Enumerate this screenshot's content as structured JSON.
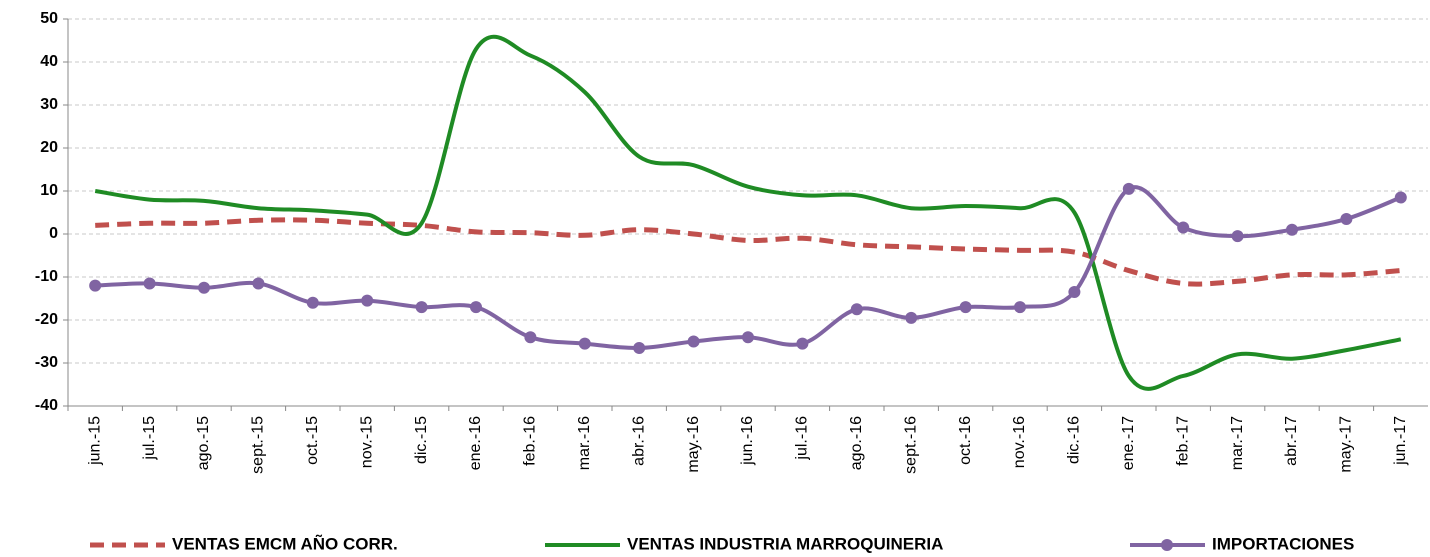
{
  "chart_data": {
    "type": "line",
    "categories": [
      "jun.-15",
      "jul.-15",
      "ago.-15",
      "sept.-15",
      "oct.-15",
      "nov.-15",
      "dic.-15",
      "ene.-16",
      "feb.-16",
      "mar.-16",
      "abr.-16",
      "may.-16",
      "jun.-16",
      "jul.-16",
      "ago.-16",
      "sept.-16",
      "oct.-16",
      "nov.-16",
      "dic.-16",
      "ene.-17",
      "feb.-17",
      "mar.-17",
      "abr.-17",
      "may.-17",
      "jun.-17"
    ],
    "series": [
      {
        "name": "VENTAS EMCM AÑO CORR.",
        "color": "#c0504d",
        "dashed": true,
        "markers": false,
        "values": [
          2,
          2.5,
          2.5,
          3.2,
          3.2,
          2.5,
          2,
          0.5,
          0.3,
          -0.3,
          1,
          0,
          -1.5,
          -1,
          -2.5,
          -3,
          -3.5,
          -3.8,
          -4.2,
          -8.5,
          -11.5,
          -11,
          -9.5,
          -9.5,
          -8.5
        ]
      },
      {
        "name": "VENTAS INDUSTRIA MARROQUINERIA",
        "color": "#1f8b24",
        "dashed": false,
        "markers": false,
        "values": [
          10,
          8,
          7.7,
          6,
          5.5,
          4.5,
          2.5,
          43,
          41.5,
          33,
          18,
          16,
          11,
          9,
          9,
          6,
          6.5,
          6,
          5,
          -33,
          -33,
          -28,
          -29,
          -27,
          -24.5
        ]
      },
      {
        "name": "IMPORTACIONES",
        "color": "#8064a2",
        "dashed": false,
        "markers": true,
        "values": [
          -12,
          -11.5,
          -12.5,
          -11.5,
          -16,
          -15.5,
          -17,
          -17,
          -24,
          -25.5,
          -26.5,
          -25,
          -24,
          -25.5,
          -17.5,
          -19.5,
          -17,
          -17,
          -13.5,
          10.5,
          1.5,
          -0.5,
          1,
          3.5,
          8.5
        ]
      }
    ],
    "ylim": [
      -40,
      50
    ],
    "yticks": [
      -40,
      -30,
      -20,
      -10,
      0,
      10,
      20,
      30,
      40,
      50
    ],
    "grid": true,
    "legend": "bottom"
  }
}
